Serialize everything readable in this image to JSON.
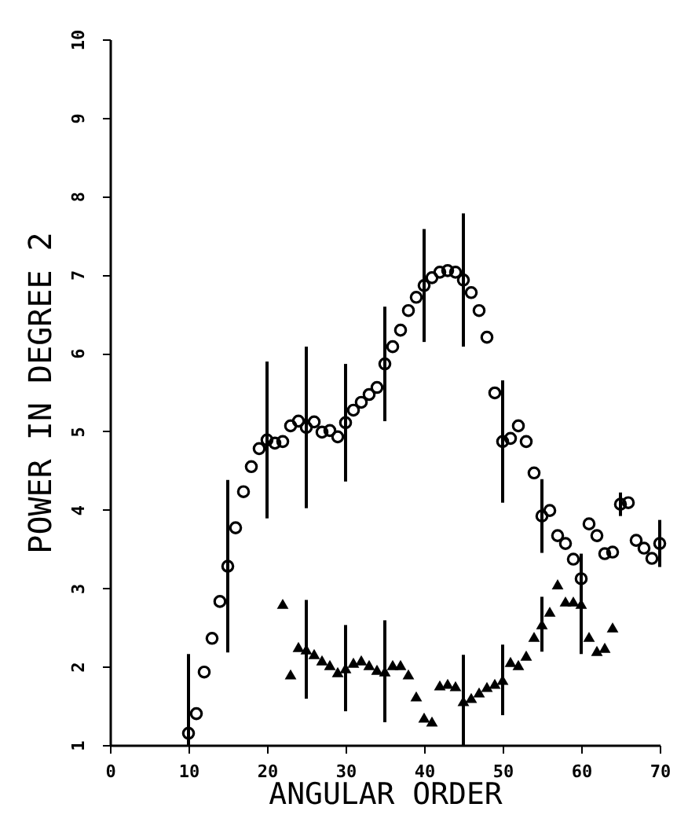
{
  "chart_data": {
    "type": "scatter",
    "xlabel": "ANGULAR ORDER",
    "ylabel": "POWER IN DEGREE 2",
    "xlim": [
      0,
      70
    ],
    "xticks": [
      0,
      10,
      20,
      30,
      40,
      50,
      60,
      70
    ],
    "ylim": [
      1,
      10
    ],
    "yticks": [
      1,
      2,
      3,
      4,
      5,
      6,
      7,
      8,
      9,
      10
    ],
    "grid": false,
    "series": [
      {
        "color": "#000000",
        "marker": "circle",
        "x": [
          10,
          11,
          12,
          13,
          14,
          15,
          16,
          17,
          18,
          19,
          20,
          21,
          22,
          23,
          24,
          25,
          26,
          27,
          28,
          29,
          30,
          31,
          32,
          33,
          34,
          35,
          36,
          37,
          38,
          39,
          40,
          41,
          42,
          43,
          44,
          45,
          46,
          47,
          48,
          49,
          50,
          51,
          52,
          53,
          54,
          55,
          56,
          57,
          58,
          59,
          60,
          61,
          62,
          63,
          64,
          65,
          66,
          67,
          68,
          69,
          70
        ],
        "values": [
          1.15,
          1.4,
          1.93,
          2.36,
          2.83,
          3.28,
          3.77,
          4.23,
          4.55,
          4.78,
          4.89,
          4.85,
          4.87,
          5.07,
          5.13,
          5.05,
          5.12,
          4.99,
          5.01,
          4.93,
          5.11,
          5.27,
          5.37,
          5.47,
          5.56,
          5.86,
          6.08,
          6.29,
          6.54,
          6.71,
          6.86,
          6.96,
          7.03,
          7.05,
          7.03,
          6.93,
          6.77,
          6.54,
          6.2,
          5.49,
          4.87,
          4.91,
          5.07,
          4.87,
          4.47,
          3.92,
          3.99,
          3.67,
          3.57,
          3.37,
          3.12,
          3.82,
          3.67,
          3.44,
          3.46,
          4.07,
          4.09,
          3.61,
          3.51,
          3.38,
          3.57
        ],
        "errors": [
          [
            1,
            2.16
          ],
          null,
          null,
          null,
          null,
          1.1,
          null,
          null,
          null,
          null,
          1.0,
          null,
          null,
          null,
          null,
          1.03,
          null,
          null,
          null,
          null,
          0.75,
          null,
          null,
          null,
          null,
          0.73,
          null,
          null,
          null,
          null,
          0.72,
          null,
          null,
          null,
          null,
          0.85,
          null,
          null,
          null,
          null,
          0.78,
          null,
          null,
          null,
          null,
          0.47,
          null,
          null,
          null,
          null,
          null,
          null,
          null,
          null,
          null,
          0.15,
          null,
          null,
          null,
          null,
          0.3
        ]
      },
      {
        "color": "#000000",
        "marker": "triangle",
        "x": [
          22,
          23,
          24,
          25,
          26,
          27,
          28,
          29,
          30,
          31,
          32,
          33,
          34,
          35,
          36,
          37,
          38,
          39,
          40,
          41,
          42,
          43,
          44,
          45,
          46,
          47,
          48,
          49,
          50,
          51,
          52,
          53,
          54,
          55,
          56,
          57,
          58,
          59,
          60,
          61,
          62,
          63,
          64
        ],
        "values": [
          2.8,
          1.9,
          2.25,
          2.22,
          2.16,
          2.08,
          2.02,
          1.93,
          1.98,
          2.05,
          2.08,
          2.02,
          1.96,
          1.94,
          2.02,
          2.02,
          1.9,
          1.62,
          1.35,
          1.3,
          1.76,
          1.78,
          1.75,
          1.56,
          1.6,
          1.67,
          1.74,
          1.78,
          1.83,
          2.06,
          2.02,
          2.14,
          2.38,
          2.54,
          2.7,
          3.05,
          2.83,
          2.83,
          2.8,
          2.38,
          2.2,
          2.24,
          2.5
        ],
        "errors": [
          null,
          null,
          null,
          0.63,
          null,
          null,
          null,
          null,
          0.55,
          null,
          null,
          null,
          null,
          0.65,
          null,
          null,
          null,
          null,
          null,
          null,
          null,
          null,
          null,
          [
            1,
            2.15
          ],
          null,
          null,
          null,
          null,
          0.45,
          null,
          null,
          null,
          null,
          0.35,
          null,
          null,
          null,
          null,
          0.64,
          null,
          null,
          null,
          null
        ]
      }
    ]
  }
}
